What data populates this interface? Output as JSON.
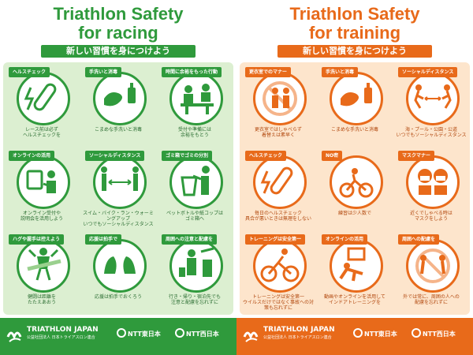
{
  "left": {
    "title_line1": "Triathlon Safety",
    "title_line2": "for racing",
    "subtitle": "新しい習慣を身につけよう",
    "cards": [
      {
        "tag": "ヘルスチェック",
        "caption": "レース前は必ず\nヘルスチェックを",
        "icon": "thermometer-icon"
      },
      {
        "tag": "手洗いと消毒",
        "caption": "こまめな手洗いと消毒",
        "icon": "hand-wash-icon"
      },
      {
        "tag": "時間に余裕をもった行動",
        "caption": "受付や準備には\n余裕をもとう",
        "icon": "reception-icon"
      },
      {
        "tag": "オンラインの活用",
        "caption": "オンライン受付や\n説明会を活用しよう",
        "icon": "online-icon"
      },
      {
        "tag": "ソーシャルディスタンス",
        "caption": "スイム・バイク・ラン・ウォーミングアップ\nいつでもソーシャルディスタンス",
        "icon": "distance-icon"
      },
      {
        "tag": "ゴミ箱でゴミの分別",
        "caption": "ペットボトルや紙コップは\nゴミ箱へ",
        "icon": "trash-icon"
      },
      {
        "tag": "ハグや握手は控えよう",
        "caption": "健闘は距離を\nたたえあおう",
        "icon": "finish-icon"
      },
      {
        "tag": "応援は拍手で",
        "caption": "応援は拍手でおくろう",
        "icon": "clap-icon"
      },
      {
        "tag": "周囲への注意と配慮を",
        "caption": "行き・帰り・宿泊先でも\n注意と配慮を忘れずに",
        "icon": "travel-icon"
      }
    ],
    "footer_org": "TRIATHLON JAPAN",
    "footer_org_sub": "公益社団法人 日本トライアスロン連合",
    "sponsor1": "NTT東日本",
    "sponsor2": "NTT西日本"
  },
  "right": {
    "title_line1": "Triathlon Safety",
    "title_line2": "for training",
    "subtitle": "新しい習慣を身につけよう",
    "cards": [
      {
        "tag": "更衣室でのマナー",
        "caption": "更衣室ではしゃべらず\n着替えは素早く",
        "icon": "no-talking-icon"
      },
      {
        "tag": "手洗いと消毒",
        "caption": "こまめな手洗いと消毒",
        "icon": "hand-wash-icon"
      },
      {
        "tag": "ソーシャルディスタンス",
        "caption": "海・プール・公園・公道\nいつでもソーシャルディスタンス",
        "icon": "distance-icon"
      },
      {
        "tag": "ヘルスチェック",
        "caption": "毎日のヘルスチェック\n具合が悪いときは無理をしない",
        "icon": "thermometer-icon"
      },
      {
        "tag": "NO密",
        "caption": "練習は少人数で",
        "icon": "small-group-icon"
      },
      {
        "tag": "マスクマナー",
        "caption": "近くでしゃべる時は\nマスクをしよう",
        "icon": "mask-icon"
      },
      {
        "tag": "トレーニングは安全第一",
        "caption": "トレーニングは安全第一\nウイルスだけではなく事故への対策も忘れずに",
        "icon": "cycling-icon"
      },
      {
        "tag": "オンラインの活用",
        "caption": "動画やオンラインを活用して\nインドアトレーニングを",
        "icon": "indoor-training-icon"
      },
      {
        "tag": "周囲への配慮を",
        "caption": "外では常に、周囲の人への\n配慮を忘れずに",
        "icon": "no-group-icon"
      }
    ],
    "footer_org": "TRIATHLON JAPAN",
    "footer_org_sub": "公益社団法人 日本トライアスロン連合",
    "sponsor1": "NTT東日本",
    "sponsor2": "NTT西日本"
  },
  "colors": {
    "green": "#2f9a3c",
    "orange": "#e86a1a",
    "green_bg": "#dcefd1",
    "orange_bg": "#fde5cc"
  }
}
